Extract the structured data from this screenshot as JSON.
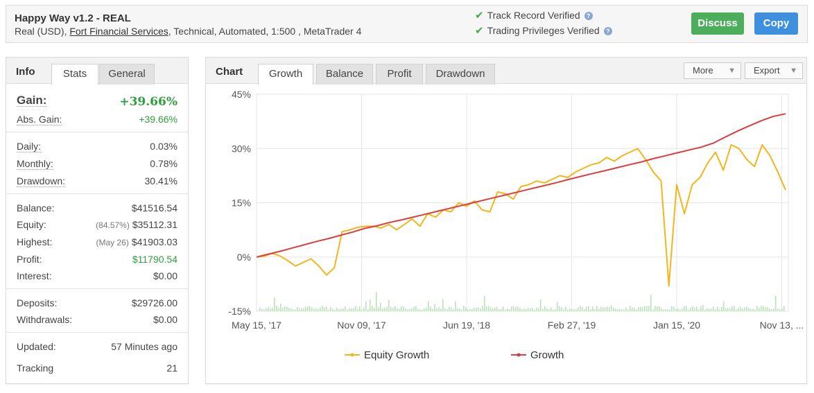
{
  "header": {
    "title": "Happy Way v1.2 - REAL",
    "sub_prefix": "Real (USD), ",
    "broker": "Fort Financial Services",
    "sub_suffix": ", Technical, Automated, 1:500 , MetaTrader 4",
    "verified_1": "Track Record Verified",
    "verified_2": "Trading Privileges Verified",
    "check_icon": "check-icon",
    "help_icon": "help-icon",
    "discuss_label": "Discuss",
    "copy_label": "Copy",
    "colors": {
      "discuss": "#4cae5a",
      "copy": "#3f8fdf",
      "check": "#44a94a"
    }
  },
  "info": {
    "title": "Info",
    "tabs": [
      "Stats",
      "General"
    ],
    "gain_label": "Gain:",
    "gain_value": "+39.66%",
    "abs_gain_label": "Abs. Gain:",
    "abs_gain_value": "+39.66%",
    "daily_label": "Daily:",
    "daily_value": "0.03%",
    "monthly_label": "Monthly:",
    "monthly_value": "0.78%",
    "drawdown_label": "Drawdown:",
    "drawdown_value": "30.41%",
    "balance_label": "Balance:",
    "balance_value": "$41516.54",
    "equity_label": "Equity:",
    "equity_pre": "(84.57%)",
    "equity_value": "$35112.31",
    "highest_label": "Highest:",
    "highest_pre": "(May 26)",
    "highest_value": "$41903.03",
    "profit_label": "Profit:",
    "profit_value": "$11790.54",
    "interest_label": "Interest:",
    "interest_value": "$0.00",
    "deposits_label": "Deposits:",
    "deposits_value": "$29726.00",
    "withdrawals_label": "Withdrawals:",
    "withdrawals_value": "$0.00",
    "updated_label": "Updated:",
    "updated_value": "57 Minutes ago",
    "tracking_label": "Tracking",
    "tracking_value": "21"
  },
  "chart_panel": {
    "title": "Chart",
    "tabs": [
      "Growth",
      "Balance",
      "Profit",
      "Drawdown"
    ],
    "more_label": "More",
    "export_label": "Export"
  },
  "chart_data": {
    "type": "line",
    "y_ticks": [
      "45%",
      "30%",
      "15%",
      "0%",
      "-15%"
    ],
    "ylim": [
      -15,
      45
    ],
    "x_ticks": [
      "May 15, '17",
      "Nov 09, '17",
      "Jun 19, '18",
      "Feb 27, '19",
      "Jan 15, '20",
      "Nov 13, ..."
    ],
    "grid": true,
    "legend_position": "bottom",
    "series": [
      {
        "name": "Equity Growth",
        "color": "#f2b61a",
        "values": [
          0,
          0.2,
          1.0,
          0.3,
          -1.0,
          -2.5,
          -1.5,
          -0.5,
          -2.5,
          -5.0,
          -3.0,
          7,
          7.5,
          8.2,
          8.5,
          8.5,
          8.0,
          9.0,
          7.5,
          9.0,
          10.5,
          8.5,
          12.0,
          11.0,
          13.0,
          12.5,
          15.0,
          14.0,
          15.5,
          13.0,
          12.5,
          18.0,
          17.5,
          16.0,
          19.5,
          20.0,
          21.0,
          20.5,
          21.5,
          22.5,
          22.0,
          23.5,
          24.5,
          25.5,
          26.0,
          27.5,
          26.5,
          28.0,
          29.0,
          30.0,
          27.0,
          23.5,
          21.0,
          -8.0,
          20.0,
          12.0,
          20.0,
          22.0,
          26.0,
          29.0,
          24.0,
          31.0,
          30.0,
          27.0,
          25.0,
          31.0,
          28.0,
          23.5,
          18.5
        ]
      },
      {
        "name": "Growth",
        "color": "#dd3c3c",
        "values": [
          0,
          0.8,
          1.6,
          2.5,
          3.4,
          4.3,
          5.1,
          6.0,
          6.9,
          7.9,
          8.6,
          9.5,
          10.2,
          11.0,
          11.8,
          12.6,
          13.4,
          14.2,
          15.0,
          15.8,
          16.6,
          17.4,
          18.2,
          19.0,
          19.8,
          20.6,
          21.5,
          22.3,
          23.1,
          23.9,
          24.7,
          25.5,
          26.3,
          27.2,
          28.0,
          28.8,
          29.6,
          30.4,
          31.5,
          33.2,
          34.8,
          36.3,
          37.7,
          38.9,
          39.6
        ]
      }
    ]
  }
}
